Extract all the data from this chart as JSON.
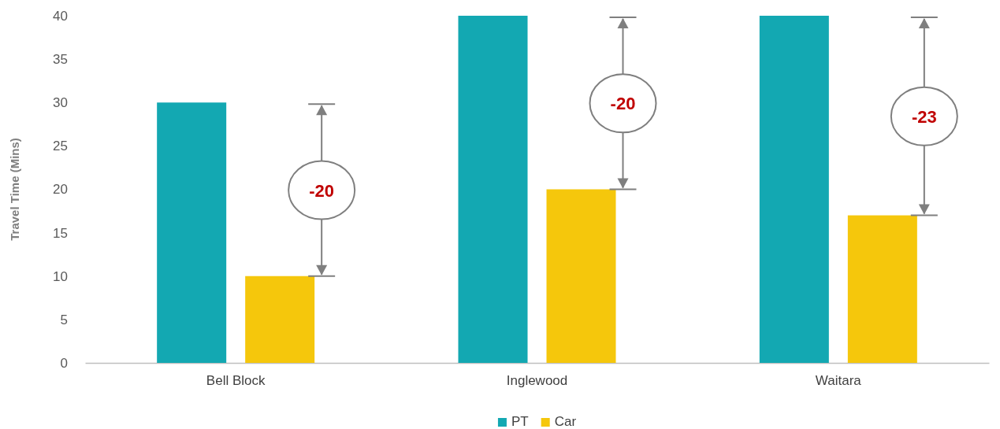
{
  "chart_data": {
    "type": "bar",
    "ylabel": "Travel Time (Mins)",
    "categories": [
      "Bell Block",
      "Inglewood",
      "Waitara"
    ],
    "series": [
      {
        "name": "PT",
        "color": "#13a8b2",
        "values": [
          30,
          40,
          40
        ]
      },
      {
        "name": "Car",
        "color": "#f5c70c",
        "values": [
          10,
          20,
          17
        ]
      }
    ],
    "ylim": [
      0,
      40
    ],
    "yticks": [
      0,
      5,
      10,
      15,
      20,
      25,
      30,
      35,
      40
    ],
    "grid": false,
    "legend": "bottom",
    "annotations": [
      "-20",
      "-20",
      "-23"
    ]
  }
}
